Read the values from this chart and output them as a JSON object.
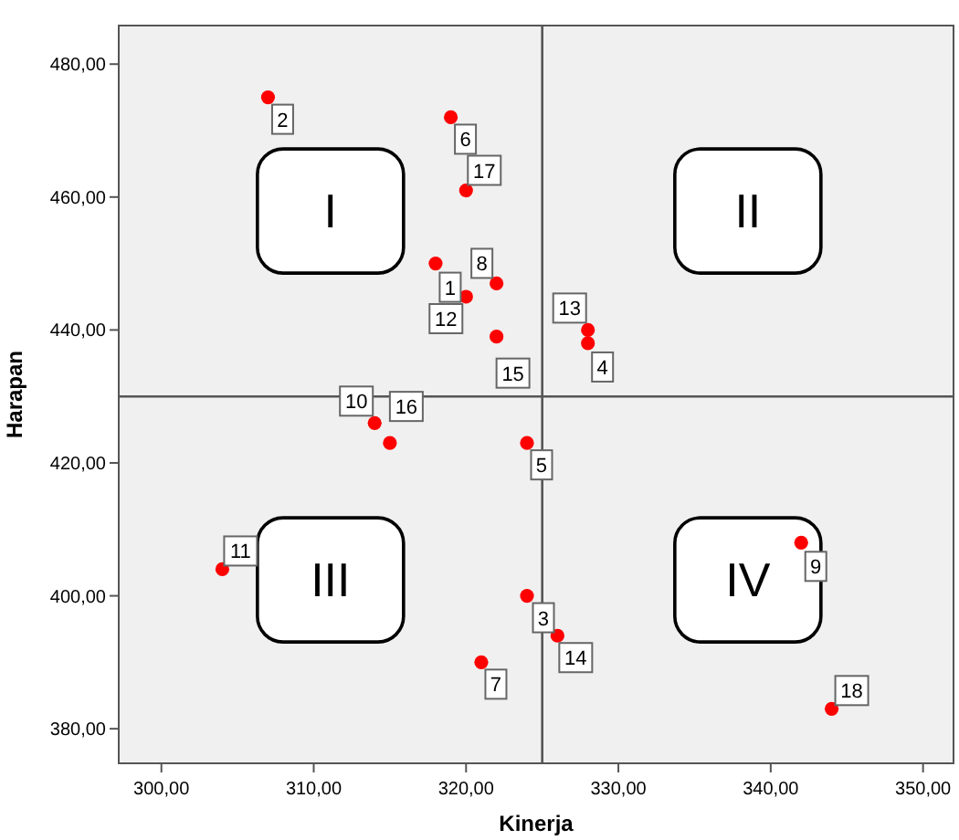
{
  "chart_data": {
    "type": "scatter",
    "xlabel": "Kinerja",
    "ylabel": "Harapan",
    "x": [
      318,
      307,
      324,
      328,
      324,
      319,
      321,
      322,
      342,
      314,
      304,
      320,
      328,
      326,
      322,
      315,
      320,
      344
    ],
    "series": [
      {
        "color": "#ff0000",
        "values": [
          450,
          475,
          400,
          438,
          423,
          472,
          390,
          447,
          408,
          426,
          404,
          445,
          440,
          394,
          439,
          423,
          461,
          383
        ]
      }
    ],
    "xlim": [
      297.2,
      352
    ],
    "ylim": [
      374.8,
      485.8
    ],
    "xticks": [
      {
        "value": 300,
        "label": "300,00"
      },
      {
        "value": 310,
        "label": "310,00"
      },
      {
        "value": 320,
        "label": "320,00"
      },
      {
        "value": 330,
        "label": "330,00"
      },
      {
        "value": 340,
        "label": "340,00"
      },
      {
        "value": 350,
        "label": "350,00"
      }
    ],
    "yticks": [
      {
        "value": 380,
        "label": "380,00"
      },
      {
        "value": 400,
        "label": "400,00"
      },
      {
        "value": 420,
        "label": "420,00"
      },
      {
        "value": 440,
        "label": "440,00"
      },
      {
        "value": 460,
        "label": "460,00"
      },
      {
        "value": 480,
        "label": "480,00"
      }
    ],
    "ref_lines": [
      {
        "axis": "x",
        "value": 325
      },
      {
        "axis": "y",
        "value": 430
      }
    ],
    "annotations": [
      "I",
      "II",
      "III",
      "IV",
      {
        "text": "1",
        "x": 318,
        "y": 450
      },
      {
        "text": "2",
        "x": 307,
        "y": 475
      },
      {
        "text": "3",
        "x": 324,
        "y": 400
      },
      {
        "text": "4",
        "x": 328,
        "y": 438
      },
      {
        "text": "5",
        "x": 324,
        "y": 423
      },
      {
        "text": "6",
        "x": 319,
        "y": 472
      },
      {
        "text": "7",
        "x": 321,
        "y": 390
      },
      {
        "text": "8",
        "x": 322,
        "y": 447
      },
      {
        "text": "9",
        "x": 342,
        "y": 408
      },
      {
        "text": "10",
        "x": 314,
        "y": 426
      },
      {
        "text": "11",
        "x": 304,
        "y": 404
      },
      {
        "text": "12",
        "x": 320,
        "y": 445
      },
      {
        "text": "13",
        "x": 328,
        "y": 440
      },
      {
        "text": "14",
        "x": 326,
        "y": 394
      },
      {
        "text": "15",
        "x": 322,
        "y": 439
      },
      {
        "text": "16",
        "x": 315,
        "y": 423
      },
      {
        "text": "17",
        "x": 320,
        "y": 461
      },
      {
        "text": "18",
        "x": 344,
        "y": 383
      }
    ],
    "marker": "circle",
    "grid": false
  }
}
